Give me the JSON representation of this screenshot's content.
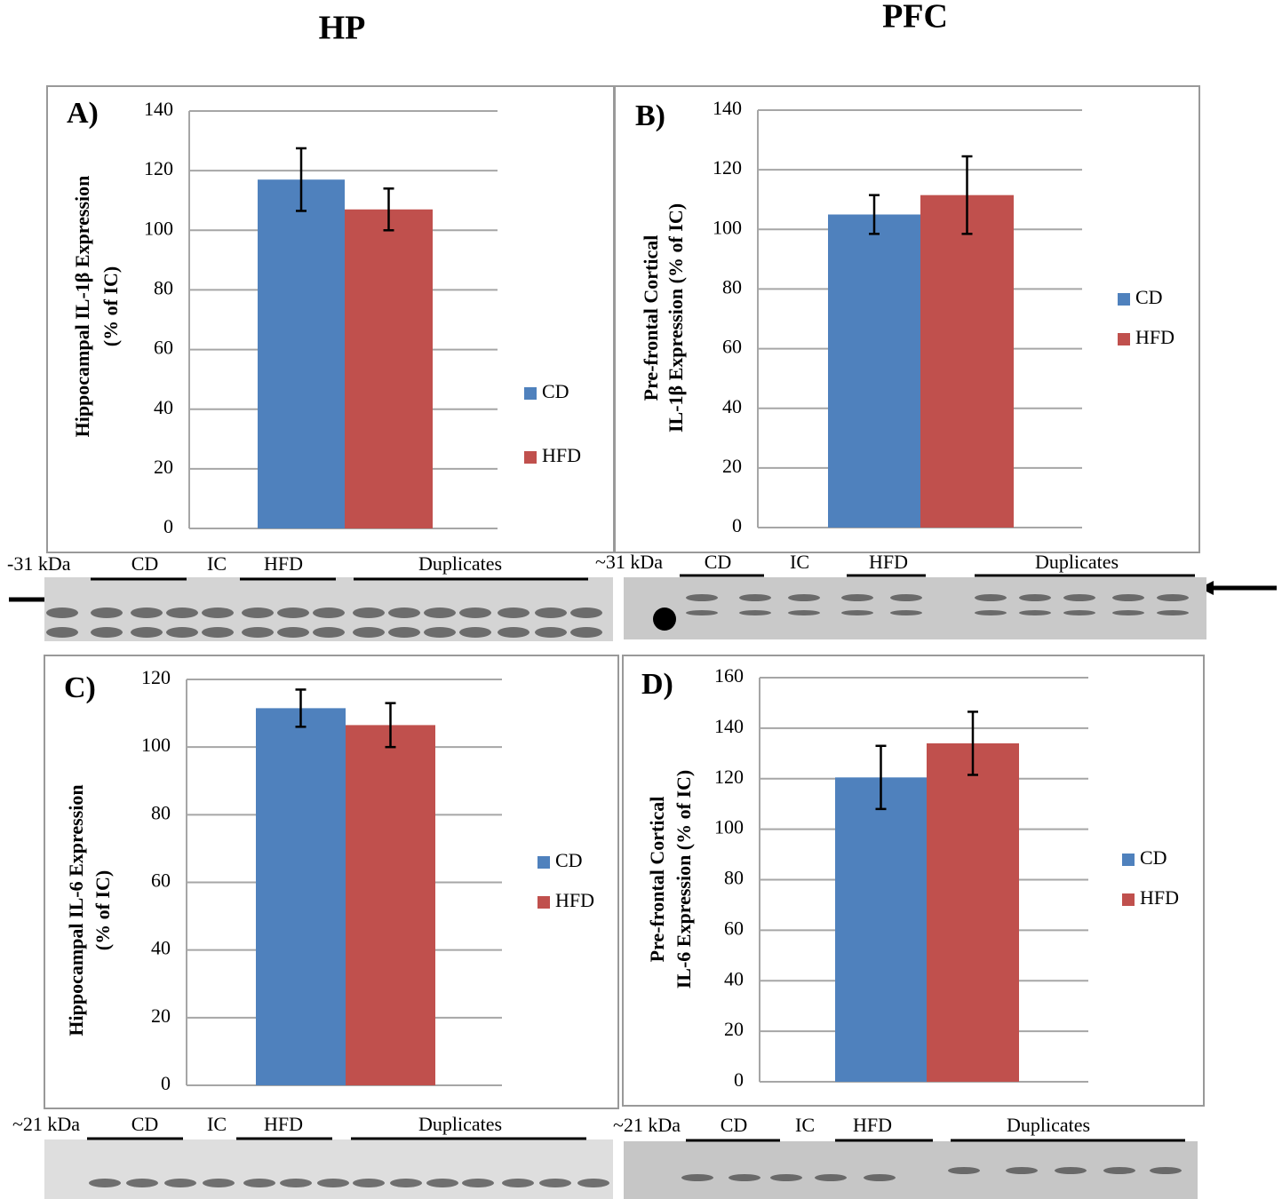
{
  "headers": [
    "HP",
    "PFC"
  ],
  "chart_data": [
    {
      "type": "bar",
      "panel_label": "A)",
      "ylabel": [
        "Hippocampal IL-1β Expression",
        "(% of IC)"
      ],
      "categories": [
        null
      ],
      "series": [
        {
          "name": "CD",
          "color": "#4f81bd",
          "values": [
            117
          ],
          "errors": [
            10.5
          ]
        },
        {
          "name": "HFD",
          "color": "#c0504d",
          "values": [
            107
          ],
          "errors": [
            7
          ]
        }
      ],
      "ylim": [
        0,
        140
      ],
      "yticks": [
        0,
        20,
        40,
        60,
        80,
        100,
        120,
        140
      ],
      "grid": true
    },
    {
      "type": "bar",
      "panel_label": "B)",
      "ylabel": [
        "Pre-frontal Cortical",
        "IL-1β Expression (% of IC)"
      ],
      "categories": [
        null
      ],
      "series": [
        {
          "name": "CD",
          "color": "#4f81bd",
          "values": [
            105
          ],
          "errors": [
            6.5
          ]
        },
        {
          "name": "HFD",
          "color": "#c0504d",
          "values": [
            111.5
          ],
          "errors": [
            13
          ]
        }
      ],
      "ylim": [
        0,
        140
      ],
      "yticks": [
        0,
        20,
        40,
        60,
        80,
        100,
        120,
        140
      ],
      "grid": true
    },
    {
      "type": "bar",
      "panel_label": "C)",
      "ylabel": [
        "Hippocampal IL-6 Expression",
        "(% of IC)"
      ],
      "categories": [
        null
      ],
      "series": [
        {
          "name": "CD",
          "color": "#4f81bd",
          "values": [
            111.5
          ],
          "errors": [
            5.5
          ]
        },
        {
          "name": "HFD",
          "color": "#c0504d",
          "values": [
            106.5
          ],
          "errors": [
            6.5
          ]
        }
      ],
      "ylim": [
        0,
        120
      ],
      "yticks": [
        0,
        20,
        40,
        60,
        80,
        100,
        120
      ],
      "grid": true
    },
    {
      "type": "bar",
      "panel_label": "D)",
      "ylabel": [
        "Pre-frontal Cortical",
        "IL-6 Expression (% of IC)"
      ],
      "categories": [
        null
      ],
      "series": [
        {
          "name": "CD",
          "color": "#4f81bd",
          "values": [
            120.5
          ],
          "errors": [
            12.5
          ]
        },
        {
          "name": "HFD",
          "color": "#c0504d",
          "values": [
            134
          ],
          "errors": [
            12.5
          ]
        }
      ],
      "ylim": [
        0,
        160
      ],
      "yticks": [
        0,
        20,
        40,
        60,
        80,
        100,
        120,
        140,
        160
      ],
      "grid": true
    }
  ],
  "blots": [
    {
      "marker": "-31 kDa",
      "labels": [
        "CD",
        "IC",
        "HFD",
        "Duplicates"
      ]
    },
    {
      "marker": "~31 kDa",
      "labels": [
        "CD",
        "IC",
        "HFD",
        "Duplicates"
      ]
    },
    {
      "marker": "~21 kDa",
      "labels": [
        "CD",
        "IC",
        "HFD",
        "Duplicates"
      ]
    },
    {
      "marker": "~21 kDa",
      "labels": [
        "CD",
        "IC",
        "HFD",
        "Duplicates"
      ]
    }
  ]
}
